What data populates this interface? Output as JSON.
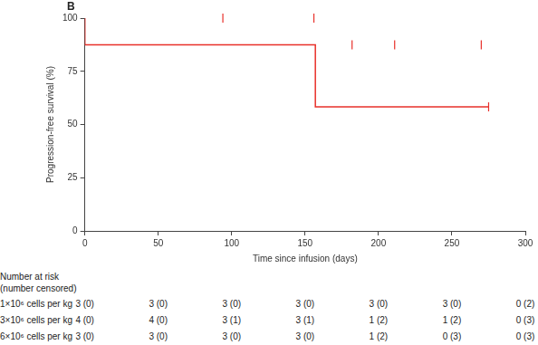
{
  "chart_data": {
    "type": "line",
    "panel_label": "B",
    "x_label": "Time since infusion (days)",
    "y_label": "Progression-free survival (%)",
    "x": [
      0,
      157,
      272,
      275
    ],
    "values": [
      100,
      87.5,
      58.3,
      58.3
    ],
    "line_style": "step",
    "color": "#e8302a",
    "censored": {
      "x": [
        94,
        156,
        182,
        211,
        270,
        275
      ],
      "values": [
        100,
        100,
        87.5,
        87.5,
        87.5,
        58.3
      ],
      "marker": "tick"
    },
    "xlim": [
      0,
      300
    ],
    "xticks": [
      0,
      50,
      100,
      150,
      200,
      250,
      300
    ],
    "ylim": [
      0,
      100
    ],
    "yticks": [
      0,
      25,
      50,
      75,
      100
    ],
    "grid": false,
    "legend": false,
    "risk_table": {
      "title": [
        "Number at risk",
        "(number censored)"
      ],
      "times": [
        0,
        50,
        100,
        150,
        200,
        250,
        300
      ],
      "rows": [
        {
          "label": "1×10⁶ cells per kg",
          "values": [
            "3 (0)",
            "3 (0)",
            "3 (0)",
            "3 (0)",
            "3 (0)",
            "3 (0)",
            "0 (2)"
          ]
        },
        {
          "label": "3×10⁶ cells per kg",
          "values": [
            "4 (0)",
            "4 (0)",
            "3 (1)",
            "3 (1)",
            "1 (2)",
            "1 (2)",
            "0 (3)"
          ]
        },
        {
          "label": "6×10⁶ cells per kg",
          "values": [
            "3 (0)",
            "3 (0)",
            "3 (0)",
            "3 (0)",
            "1 (2)",
            "0 (3)",
            "0 (3)"
          ]
        }
      ]
    }
  }
}
